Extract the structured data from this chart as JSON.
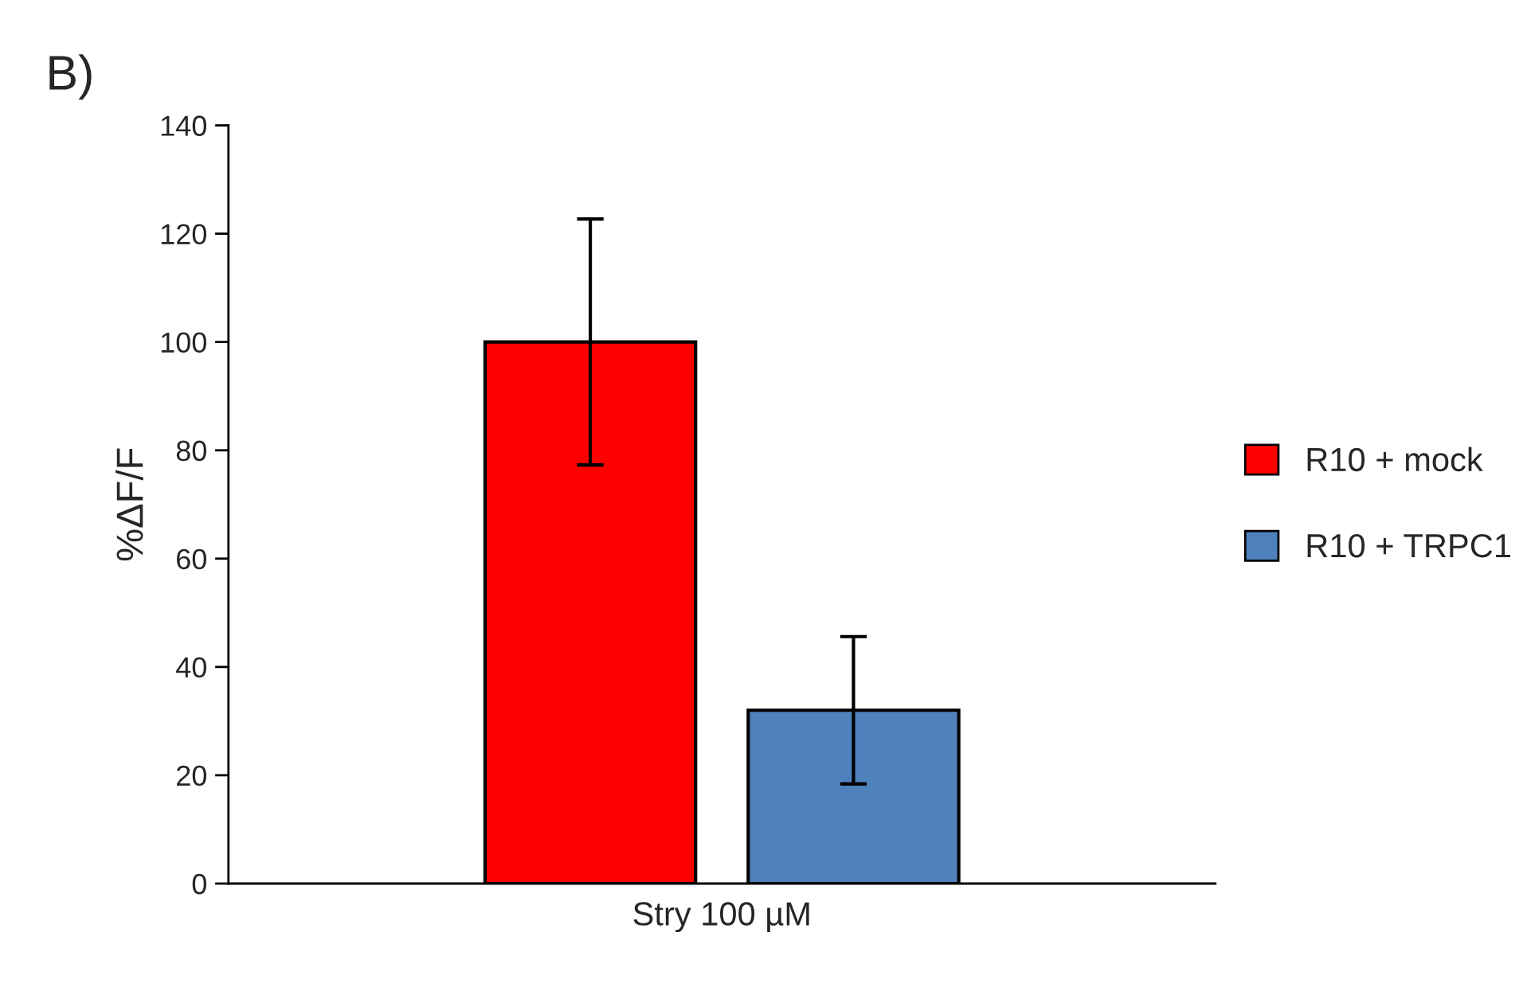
{
  "chart_data": {
    "type": "bar",
    "title": "B)",
    "ylabel": "%ΔF/F",
    "categories": [
      "Stry 100 µM"
    ],
    "series": [
      {
        "name": "R10 + mock",
        "color": "#ff0000",
        "values": [
          100
        ],
        "errors": [
          22.7
        ]
      },
      {
        "name": "R10 + TRPC1",
        "color": "#4f81bd",
        "values": [
          32
        ],
        "errors": [
          13.6
        ]
      }
    ],
    "ylim": [
      0,
      140
    ],
    "yticks": [
      0,
      20,
      40,
      60,
      80,
      100,
      120,
      140
    ],
    "grid": false,
    "legend": "right"
  }
}
